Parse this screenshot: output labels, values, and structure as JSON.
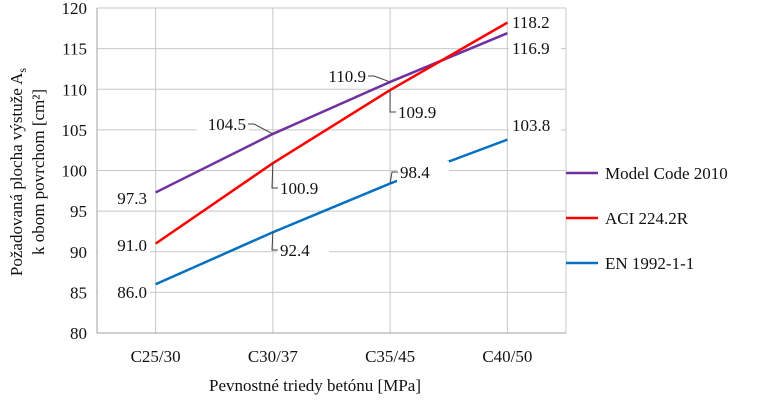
{
  "chart_data": {
    "type": "line",
    "title": "",
    "xlabel": "Pevnostné triedy betónu [MPa]",
    "ylabel_line1": "Požadovaná plocha výstuže A",
    "ylabel_sub": "s",
    "ylabel_line2": "k obom povrchom [cm²]",
    "categories": [
      "C25/30",
      "C30/37",
      "C35/45",
      "C40/50"
    ],
    "ylim": [
      80,
      120
    ],
    "yticks": [
      "80",
      "85",
      "90",
      "95",
      "100",
      "105",
      "110",
      "115",
      "120"
    ],
    "grid": true,
    "legend_position": "right",
    "series": [
      {
        "name": "Model Code 2010",
        "color": "#7030a0",
        "values": [
          97.3,
          104.5,
          110.9,
          116.9
        ],
        "labels": [
          "97.3",
          "104.5",
          "110.9",
          "116.9"
        ]
      },
      {
        "name": "ACI 224.2R",
        "color": "#ff0000",
        "values": [
          91.0,
          100.9,
          109.9,
          118.2
        ],
        "labels": [
          "91.0",
          "100.9",
          "109.9",
          "118.2"
        ]
      },
      {
        "name": "EN 1992-1-1",
        "color": "#0070c0",
        "values": [
          86.0,
          92.4,
          98.4,
          103.8
        ],
        "labels": [
          "86.0",
          "92.4",
          "98.4",
          "103.8"
        ]
      }
    ]
  }
}
